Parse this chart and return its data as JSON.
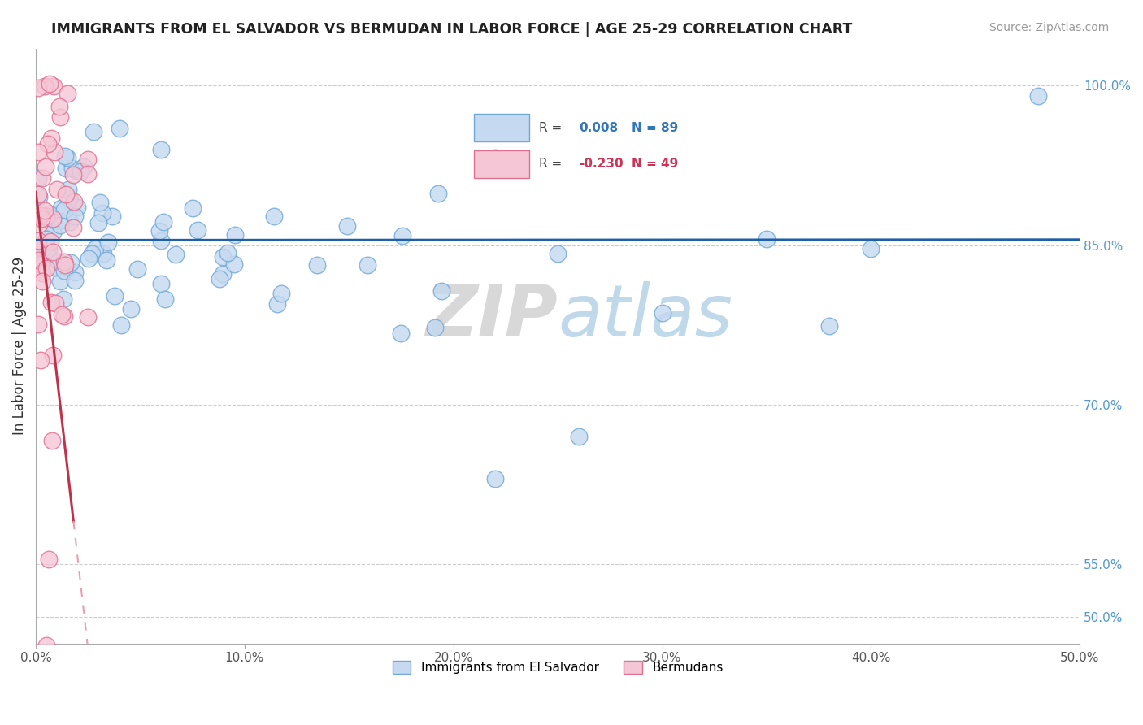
{
  "title": "IMMIGRANTS FROM EL SALVADOR VS BERMUDAN IN LABOR FORCE | AGE 25-29 CORRELATION CHART",
  "source": "Source: ZipAtlas.com",
  "ylabel": "In Labor Force | Age 25-29",
  "ytick_labels": [
    "100.0%",
    "85.0%",
    "70.0%",
    "55.0%",
    "50.0%"
  ],
  "ytick_values": [
    1.0,
    0.85,
    0.7,
    0.55,
    0.5
  ],
  "blue_label": "Immigrants from El Salvador",
  "pink_label": "Bermudans",
  "watermark_zip": "ZIP",
  "watermark_atlas": "atlas",
  "blue_color": "#c5d9f0",
  "blue_edge": "#6fa8d6",
  "pink_color": "#f5c6d5",
  "pink_edge": "#e07090",
  "blue_line_color": "#1f5fa6",
  "pink_line_color": "#c0324a",
  "pink_dash_color": "#e8a0b0",
  "background": "#ffffff",
  "xmin": 0.0,
  "xmax": 0.5,
  "ymin": 0.475,
  "ymax": 1.035,
  "legend_r_blue": "0.008",
  "legend_n_blue": "89",
  "legend_r_pink": "-0.230",
  "legend_n_pink": "49"
}
